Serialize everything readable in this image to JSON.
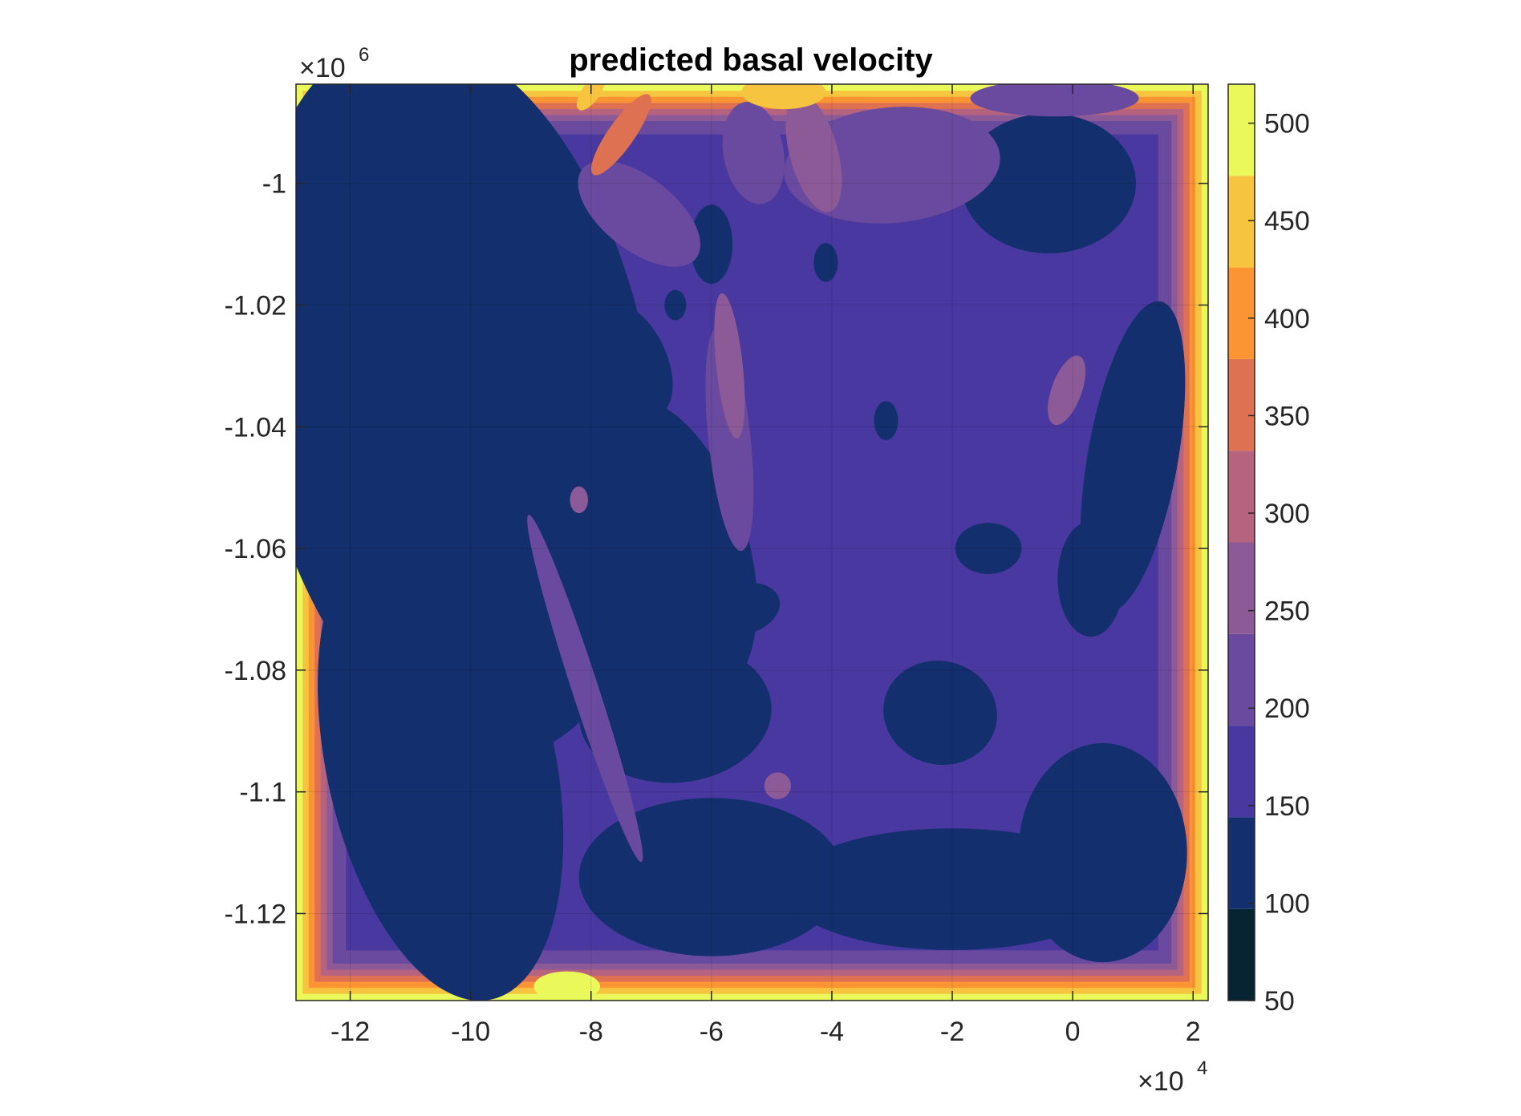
{
  "chart_data": {
    "type": "heatmap",
    "title": "predicted basal velocity",
    "xlabel": "",
    "ylabel": "",
    "x_exponent_label": "×10",
    "x_exponent": "4",
    "y_exponent_label": "×10",
    "y_exponent": "6",
    "xlim": [
      -12.9,
      2.25
    ],
    "ylim": [
      -1.1343,
      -0.9837
    ],
    "x_ticks": [
      -12,
      -10,
      -8,
      -6,
      -4,
      -2,
      0,
      2
    ],
    "x_tick_labels": [
      "-12",
      "-10",
      "-8",
      "-6",
      "-4",
      "-2",
      "0",
      "2"
    ],
    "y_ticks": [
      -1.0,
      -1.02,
      -1.04,
      -1.06,
      -1.08,
      -1.1,
      -1.12
    ],
    "y_tick_labels": [
      "-1",
      "-1.02",
      "-1.04",
      "-1.06",
      "-1.08",
      "-1.1",
      "-1.12"
    ],
    "grid": true,
    "colorbar": {
      "limits": [
        50,
        520
      ],
      "ticks": [
        50,
        100,
        150,
        200,
        250,
        300,
        350,
        400,
        450,
        500
      ],
      "tick_labels": [
        "50",
        "100",
        "150",
        "200",
        "250",
        "300",
        "350",
        "400",
        "450",
        "500"
      ],
      "levels": [
        {
          "min": 50,
          "max": 97,
          "color": "#062431"
        },
        {
          "min": 97,
          "max": 144,
          "color": "#142f6e"
        },
        {
          "min": 144,
          "max": 191,
          "color": "#4938a0"
        },
        {
          "min": 191,
          "max": 238,
          "color": "#6a4a9e"
        },
        {
          "min": 238,
          "max": 285,
          "color": "#8d5a98"
        },
        {
          "min": 285,
          "max": 332,
          "color": "#b5637f"
        },
        {
          "min": 332,
          "max": 379,
          "color": "#de7152"
        },
        {
          "min": 379,
          "max": 426,
          "color": "#fb9433"
        },
        {
          "min": 426,
          "max": 473,
          "color": "#f7c43f"
        },
        {
          "min": 473,
          "max": 520,
          "color": "#eaf85a"
        }
      ]
    },
    "background_value": 165,
    "features": [
      {
        "shape": "ellipse",
        "cx": -11.4,
        "cy": -0.995,
        "rx": 1.0,
        "ry": 0.0085,
        "rot": 10,
        "value": 70
      },
      {
        "shape": "ellipse",
        "cx": -10.4,
        "cy": -1.004,
        "rx": 0.6,
        "ry": 0.0075,
        "rot": 30,
        "value": 70
      },
      {
        "shape": "ellipse",
        "cx": -10.5,
        "cy": -1.035,
        "rx": 0.6,
        "ry": 0.0065,
        "rot": 0,
        "value": 70
      },
      {
        "shape": "ellipse",
        "cx": -11.3,
        "cy": -1.045,
        "rx": 0.6,
        "ry": 0.0028,
        "rot": 35,
        "value": 70
      },
      {
        "shape": "ellipse",
        "cx": -12.35,
        "cy": -1.018,
        "rx": 0.22,
        "ry": 0.0055,
        "rot": 0,
        "value": 70
      },
      {
        "shape": "ellipse",
        "cx": -0.5,
        "cy": -1.0,
        "rx": 0.45,
        "ry": 0.0035,
        "rot": 10,
        "value": 75
      },
      {
        "shape": "ellipse",
        "cx": 0.95,
        "cy": -1.0305,
        "rx": 0.12,
        "ry": 0.0012,
        "rot": 0,
        "value": 75
      },
      {
        "shape": "ellipse",
        "cx": -7.2,
        "cy": -1.061,
        "rx": 0.1,
        "ry": 0.0012,
        "rot": 0,
        "value": 75
      },
      {
        "shape": "ellipse",
        "cx": -6.0,
        "cy": -1.01,
        "rx": 0.08,
        "ry": 0.001,
        "rot": 0,
        "value": 75
      },
      {
        "shape": "ellipse",
        "cx": -6.9,
        "cy": -1.073,
        "rx": 0.08,
        "ry": 0.001,
        "rot": 0,
        "value": 75
      },
      {
        "shape": "ellipse",
        "cx": -10.3,
        "cy": -1.035,
        "rx": 3.3,
        "ry": 0.06,
        "rot": 10,
        "value": 120
      },
      {
        "shape": "ellipse",
        "cx": -10.5,
        "cy": -1.095,
        "rx": 1.9,
        "ry": 0.04,
        "rot": 12,
        "value": 120
      },
      {
        "shape": "ellipse",
        "cx": -9.3,
        "cy": -1.115,
        "rx": 0.35,
        "ry": 0.0045,
        "rot": 0,
        "value": 120
      },
      {
        "shape": "ellipse",
        "cx": -6.8,
        "cy": -1.06,
        "rx": 1.4,
        "ry": 0.026,
        "rot": 18,
        "value": 120
      },
      {
        "shape": "ellipse",
        "cx": -6.6,
        "cy": -1.087,
        "rx": 1.6,
        "ry": 0.0115,
        "rot": 5,
        "value": 120
      },
      {
        "shape": "ellipse",
        "cx": -6.0,
        "cy": -1.114,
        "rx": 2.2,
        "ry": 0.013,
        "rot": 0,
        "value": 120
      },
      {
        "shape": "ellipse",
        "cx": -2.0,
        "cy": -1.116,
        "rx": 2.8,
        "ry": 0.01,
        "rot": 0,
        "value": 120
      },
      {
        "shape": "ellipse",
        "cx": 0.5,
        "cy": -1.11,
        "rx": 1.4,
        "ry": 0.018,
        "rot": 0,
        "value": 120
      },
      {
        "shape": "ellipse",
        "cx": -0.4,
        "cy": -1.0,
        "rx": 1.45,
        "ry": 0.0115,
        "rot": 0,
        "value": 120
      },
      {
        "shape": "ellipse",
        "cx": 1.0,
        "cy": -1.045,
        "rx": 0.75,
        "ry": 0.026,
        "rot": -10,
        "value": 120
      },
      {
        "shape": "ellipse",
        "cx": 0.3,
        "cy": -1.065,
        "rx": 0.55,
        "ry": 0.0095,
        "rot": 0,
        "value": 120
      },
      {
        "shape": "ellipse",
        "cx": -2.2,
        "cy": -1.087,
        "rx": 0.95,
        "ry": 0.0085,
        "rot": -15,
        "value": 120
      },
      {
        "shape": "ellipse",
        "cx": -1.4,
        "cy": -1.06,
        "rx": 0.55,
        "ry": 0.0042,
        "rot": 0,
        "value": 120
      },
      {
        "shape": "ellipse",
        "cx": -5.5,
        "cy": -1.07,
        "rx": 0.65,
        "ry": 0.0042,
        "rot": 15,
        "value": 120
      },
      {
        "shape": "ellipse",
        "cx": -6.0,
        "cy": -1.01,
        "rx": 0.35,
        "ry": 0.0065,
        "rot": 0,
        "value": 120
      },
      {
        "shape": "ellipse",
        "cx": -4.1,
        "cy": -1.013,
        "rx": 0.2,
        "ry": 0.0032,
        "rot": 0,
        "value": 120
      },
      {
        "shape": "ellipse",
        "cx": -3.1,
        "cy": -1.039,
        "rx": 0.2,
        "ry": 0.0032,
        "rot": 0,
        "value": 120
      },
      {
        "shape": "ellipse",
        "cx": -7.3,
        "cy": -1.029,
        "rx": 0.55,
        "ry": 0.01,
        "rot": 25,
        "value": 120
      },
      {
        "shape": "ellipse",
        "cx": -6.6,
        "cy": -1.02,
        "rx": 0.18,
        "ry": 0.0025,
        "rot": 0,
        "value": 120
      },
      {
        "shape": "ellipse",
        "cx": -5.3,
        "cy": -0.995,
        "rx": 0.5,
        "ry": 0.0085,
        "rot": 10,
        "value": 200
      },
      {
        "shape": "ellipse",
        "cx": -7.2,
        "cy": -1.005,
        "rx": 1.2,
        "ry": 0.006,
        "rot": -38,
        "value": 200
      },
      {
        "shape": "ellipse",
        "cx": -3.0,
        "cy": -0.997,
        "rx": 1.8,
        "ry": 0.0095,
        "rot": 5,
        "value": 200
      },
      {
        "shape": "ellipse",
        "cx": -0.3,
        "cy": -0.986,
        "rx": 1.4,
        "ry": 0.003,
        "rot": 0,
        "value": 200
      },
      {
        "shape": "ellipse",
        "cx": -5.7,
        "cy": -1.042,
        "rx": 0.35,
        "ry": 0.0185,
        "rot": 6,
        "value": 230
      },
      {
        "shape": "ellipse",
        "cx": -8.1,
        "cy": -1.083,
        "rx": 0.22,
        "ry": 0.03,
        "rot": 18,
        "value": 215
      },
      {
        "shape": "ellipse",
        "cx": -0.1,
        "cy": -1.034,
        "rx": 0.25,
        "ry": 0.006,
        "rot": -20,
        "value": 250
      },
      {
        "shape": "ellipse",
        "cx": -8.2,
        "cy": -1.052,
        "rx": 0.15,
        "ry": 0.0022,
        "rot": 0,
        "value": 250
      },
      {
        "shape": "ellipse",
        "cx": -4.9,
        "cy": -1.099,
        "rx": 0.22,
        "ry": 0.0022,
        "rot": 0,
        "value": 250
      },
      {
        "shape": "ellipse",
        "cx": -4.3,
        "cy": -0.995,
        "rx": 0.4,
        "ry": 0.01,
        "rot": 15,
        "value": 270
      },
      {
        "shape": "ellipse",
        "cx": -5.7,
        "cy": -1.03,
        "rx": 0.22,
        "ry": 0.012,
        "rot": 6,
        "value": 270
      },
      {
        "shape": "ellipse",
        "cx": -7.5,
        "cy": -0.992,
        "rx": 0.22,
        "ry": 0.008,
        "rot": -35,
        "value": 360
      },
      {
        "shape": "ellipse",
        "cx": -4.8,
        "cy": -0.985,
        "rx": 0.7,
        "ry": 0.0028,
        "rot": 0,
        "value": 430
      },
      {
        "shape": "ellipse",
        "cx": -8.0,
        "cy": -0.985,
        "rx": 0.15,
        "ry": 0.0035,
        "rot": -35,
        "value": 460
      },
      {
        "shape": "ellipse",
        "cx": -8.4,
        "cy": -1.132,
        "rx": 0.55,
        "ry": 0.0025,
        "rot": 0,
        "value": 480
      }
    ]
  }
}
